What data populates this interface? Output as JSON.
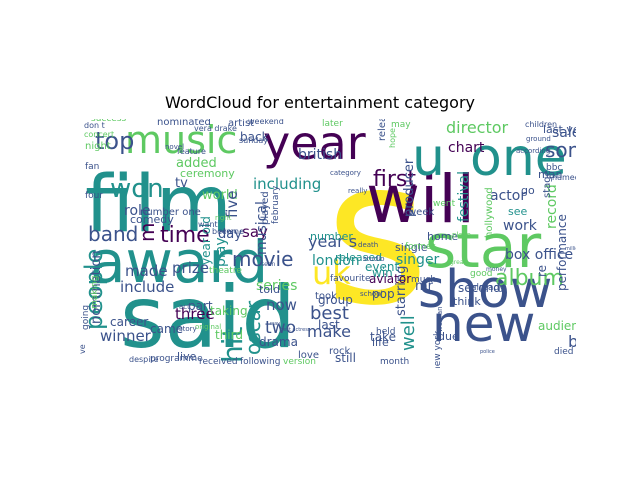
{
  "title": "WordCloud for entertainment category",
  "palette": {
    "dark": "#440154",
    "blue": "#3b528b",
    "teal": "#21918c",
    "green": "#5ec962",
    "yellow": "#fde725",
    "grey": "#9a9a9a"
  },
  "words": [
    {
      "text": "said",
      "color": "#21918c"
    },
    {
      "text": "s",
      "color": "#fde725"
    },
    {
      "text": "film",
      "color": "#21918c"
    },
    {
      "text": "will",
      "color": "#440154"
    },
    {
      "text": "award",
      "color": "#21918c"
    },
    {
      "text": "star",
      "color": "#5ec962"
    },
    {
      "text": "show",
      "color": "#3b528b"
    },
    {
      "text": "new",
      "color": "#3b528b"
    },
    {
      "text": "one",
      "color": "#21918c"
    },
    {
      "text": "u",
      "color": "#21918c"
    },
    {
      "text": "year",
      "color": "#440154"
    },
    {
      "text": "music",
      "color": "#5ec962"
    },
    {
      "text": "uk",
      "color": "#fde725"
    },
    {
      "text": "won",
      "color": "#21918c"
    },
    {
      "text": "top",
      "color": "#3b528b"
    },
    {
      "text": "band",
      "color": "#3b528b"
    },
    {
      "text": "m",
      "color": "#440154"
    },
    {
      "text": "time",
      "color": "#440154"
    },
    {
      "text": "people",
      "color": "#21918c"
    },
    {
      "text": "album",
      "color": "#5ec962"
    },
    {
      "text": "movie",
      "color": "#3b528b"
    },
    {
      "text": "first",
      "color": "#440154"
    },
    {
      "text": "song",
      "color": "#3b528b"
    },
    {
      "text": "director",
      "color": "#5ec962"
    },
    {
      "text": "sale",
      "color": "#3b528b"
    },
    {
      "text": "oscar",
      "color": "#21918c"
    },
    {
      "text": "best",
      "color": "#3b528b"
    },
    {
      "text": "hit",
      "color": "#21918c"
    },
    {
      "text": "year s",
      "color": "#3b528b"
    },
    {
      "text": "make",
      "color": "#3b528b"
    },
    {
      "text": "say",
      "color": "#440154"
    },
    {
      "text": "two",
      "color": "#3b528b"
    },
    {
      "text": "now",
      "color": "#3b528b"
    },
    {
      "text": "three",
      "color": "#440154"
    },
    {
      "text": "prize",
      "color": "#3b528b"
    },
    {
      "text": "made",
      "color": "#3b528b"
    },
    {
      "text": "include",
      "color": "#3b528b"
    },
    {
      "text": "winner",
      "color": "#3b528b"
    },
    {
      "text": "book",
      "color": "#3b528b"
    },
    {
      "text": "set",
      "color": "#3b528b"
    },
    {
      "text": "well",
      "color": "#21918c"
    },
    {
      "text": "series",
      "color": "#5ec962"
    },
    {
      "text": "box office",
      "color": "#3b528b"
    },
    {
      "text": "singer",
      "color": "#21918c"
    },
    {
      "text": "actor",
      "color": "#3b528b"
    },
    {
      "text": "work",
      "color": "#3b528b"
    },
    {
      "text": "chart",
      "color": "#440154"
    },
    {
      "text": "producer",
      "color": "#3b528b"
    },
    {
      "text": "festival",
      "color": "#21918c"
    },
    {
      "text": "record",
      "color": "#5ec962"
    },
    {
      "text": "musical",
      "color": "#3b528b"
    },
    {
      "text": "london",
      "color": "#21918c"
    },
    {
      "text": "role",
      "color": "#3b528b"
    },
    {
      "text": "added",
      "color": "#5ec962"
    },
    {
      "text": "british",
      "color": "#3b528b"
    },
    {
      "text": "including",
      "color": "#21918c"
    },
    {
      "text": "world",
      "color": "#5ec962"
    },
    {
      "text": "tv",
      "color": "#3b528b"
    },
    {
      "text": "five",
      "color": "#3b528b"
    },
    {
      "text": "day",
      "color": "#3b528b"
    },
    {
      "text": "play",
      "color": "#21918c"
    },
    {
      "text": "year old",
      "color": "#21918c"
    },
    {
      "text": "nomination",
      "color": "#3b528b"
    },
    {
      "text": "part",
      "color": "#3b528b"
    },
    {
      "text": "taking",
      "color": "#5ec962"
    },
    {
      "text": "came",
      "color": "#3b528b"
    },
    {
      "text": "mr",
      "color": "#3b528b"
    },
    {
      "text": "pop",
      "color": "#3b528b"
    },
    {
      "text": "win",
      "color": "#21918c"
    },
    {
      "text": "event",
      "color": "#21918c"
    },
    {
      "text": "second",
      "color": "#3b528b"
    },
    {
      "text": "performance",
      "color": "#3b528b"
    },
    {
      "text": "audience",
      "color": "#5ec962"
    },
    {
      "text": "starring",
      "color": "#3b528b"
    },
    {
      "text": "group",
      "color": "#3b528b"
    },
    {
      "text": "told",
      "color": "#3b528b"
    },
    {
      "text": "career",
      "color": "#3b528b"
    },
    {
      "text": "live",
      "color": "#3b528b"
    },
    {
      "text": "third",
      "color": "#5ec962"
    },
    {
      "text": "drama",
      "color": "#3b528b"
    },
    {
      "text": "take",
      "color": "#3b528b"
    },
    {
      "text": "still",
      "color": "#3b528b"
    },
    {
      "text": "last",
      "color": "#3b528b"
    },
    {
      "text": "single",
      "color": "#3b528b"
    },
    {
      "text": "re",
      "color": "#3b528b"
    },
    {
      "text": "man",
      "color": "#3b528b"
    },
    {
      "text": "last year",
      "color": "#3b528b"
    },
    {
      "text": "ceremony",
      "color": "#5ec962"
    },
    {
      "text": "comedy",
      "color": "#3b528b"
    },
    {
      "text": "go",
      "color": "#3b528b"
    },
    {
      "text": "see",
      "color": "#21918c"
    },
    {
      "text": "home",
      "color": "#3b528b"
    },
    {
      "text": "think",
      "color": "#3b528b"
    },
    {
      "text": "released",
      "color": "#21918c"
    },
    {
      "text": "number",
      "color": "#21918c"
    },
    {
      "text": "back",
      "color": "#3b528b"
    },
    {
      "text": "success",
      "color": "#5ec962"
    },
    {
      "text": "artist",
      "color": "#3b528b"
    },
    {
      "text": "release",
      "color": "#3b528b"
    },
    {
      "text": "hollywood",
      "color": "#5ec962"
    },
    {
      "text": "nominated",
      "color": "#3b528b"
    },
    {
      "text": "aviator",
      "color": "#440154"
    },
    {
      "text": "love",
      "color": "#3b528b"
    },
    {
      "text": "life",
      "color": "#3b528b"
    },
    {
      "text": "rock",
      "color": "#3b528b"
    },
    {
      "text": "took",
      "color": "#3b528b"
    },
    {
      "text": "due",
      "color": "#3b528b"
    },
    {
      "text": "died",
      "color": "#3b528b"
    },
    {
      "text": "night",
      "color": "#5ec962"
    },
    {
      "text": "fan",
      "color": "#3b528b"
    },
    {
      "text": "four",
      "color": "#3b528b"
    },
    {
      "text": "went",
      "color": "#5ec962"
    },
    {
      "text": "number one",
      "color": "#3b528b"
    },
    {
      "text": "week",
      "color": "#3b528b"
    },
    {
      "text": "new york",
      "color": "#3b528b"
    },
    {
      "text": "played",
      "color": "#3b528b"
    },
    {
      "text": "theatre",
      "color": "#5ec962"
    },
    {
      "text": "february",
      "color": "#3b528b"
    },
    {
      "text": "later",
      "color": "#5ec962"
    },
    {
      "text": "may",
      "color": "#5ec962"
    },
    {
      "text": "hope",
      "color": "#5ec962"
    },
    {
      "text": "stage",
      "color": "#3b528b"
    },
    {
      "text": "bbc",
      "color": "#3b528b"
    },
    {
      "text": "named best",
      "color": "#3b528b"
    },
    {
      "text": "going",
      "color": "#3b528b"
    },
    {
      "text": "making",
      "color": "#5ec962"
    },
    {
      "text": "good",
      "color": "#5ec962"
    },
    {
      "text": "already",
      "color": "#3b528b"
    },
    {
      "text": "much",
      "color": "#3b528b"
    },
    {
      "text": "held",
      "color": "#3b528b"
    },
    {
      "text": "favourite",
      "color": "#3b528b"
    },
    {
      "text": "former",
      "color": "#5ec962"
    },
    {
      "text": "ve",
      "color": "#3b528b"
    },
    {
      "text": "programme",
      "color": "#3b528b"
    },
    {
      "text": "received",
      "color": "#3b528b"
    },
    {
      "text": "following",
      "color": "#3b528b"
    },
    {
      "text": "version",
      "color": "#5ec962"
    },
    {
      "text": "month",
      "color": "#3b528b"
    },
    {
      "text": "weekend",
      "color": "#3b528b"
    },
    {
      "text": "sunday",
      "color": "#3b528b"
    },
    {
      "text": "category",
      "color": "#3b528b"
    },
    {
      "text": "really",
      "color": "#3b528b"
    },
    {
      "text": "vera drake",
      "color": "#3b528b"
    },
    {
      "text": "don t",
      "color": "#3b528b"
    },
    {
      "text": "concert",
      "color": "#5ec962"
    },
    {
      "text": "want",
      "color": "#3b528b"
    },
    {
      "text": "become",
      "color": "#3b528b"
    },
    {
      "text": "feature",
      "color": "#3b528b"
    },
    {
      "text": "act",
      "color": "#3b528b"
    },
    {
      "text": "original",
      "color": "#5ec962"
    },
    {
      "text": "school",
      "color": "#3b528b"
    },
    {
      "text": "novel",
      "color": "#3b528b"
    },
    {
      "text": "story",
      "color": "#3b528b"
    },
    {
      "text": "death",
      "color": "#3b528b"
    },
    {
      "text": "studio",
      "color": "#3b528b"
    },
    {
      "text": "woman",
      "color": "#3b528b"
    },
    {
      "text": "place",
      "color": "#5ec962"
    },
    {
      "text": "children",
      "color": "#3b528b"
    },
    {
      "text": "ground",
      "color": "#3b528b"
    },
    {
      "text": "right",
      "color": "#5ec962"
    },
    {
      "text": "despite",
      "color": "#3b528b"
    },
    {
      "text": "according",
      "color": "#3b528b"
    },
    {
      "text": "seen",
      "color": "#3b528b"
    },
    {
      "text": "great",
      "color": "#5ec962"
    },
    {
      "text": "police",
      "color": "#3b528b"
    },
    {
      "text": "money",
      "color": "#3b528b"
    },
    {
      "text": "never",
      "color": "#3b528b"
    },
    {
      "text": "million",
      "color": "#3b528b"
    },
    {
      "text": "way",
      "color": "#3b528b"
    },
    {
      "text": "best actress",
      "color": "#3b528b"
    }
  ]
}
